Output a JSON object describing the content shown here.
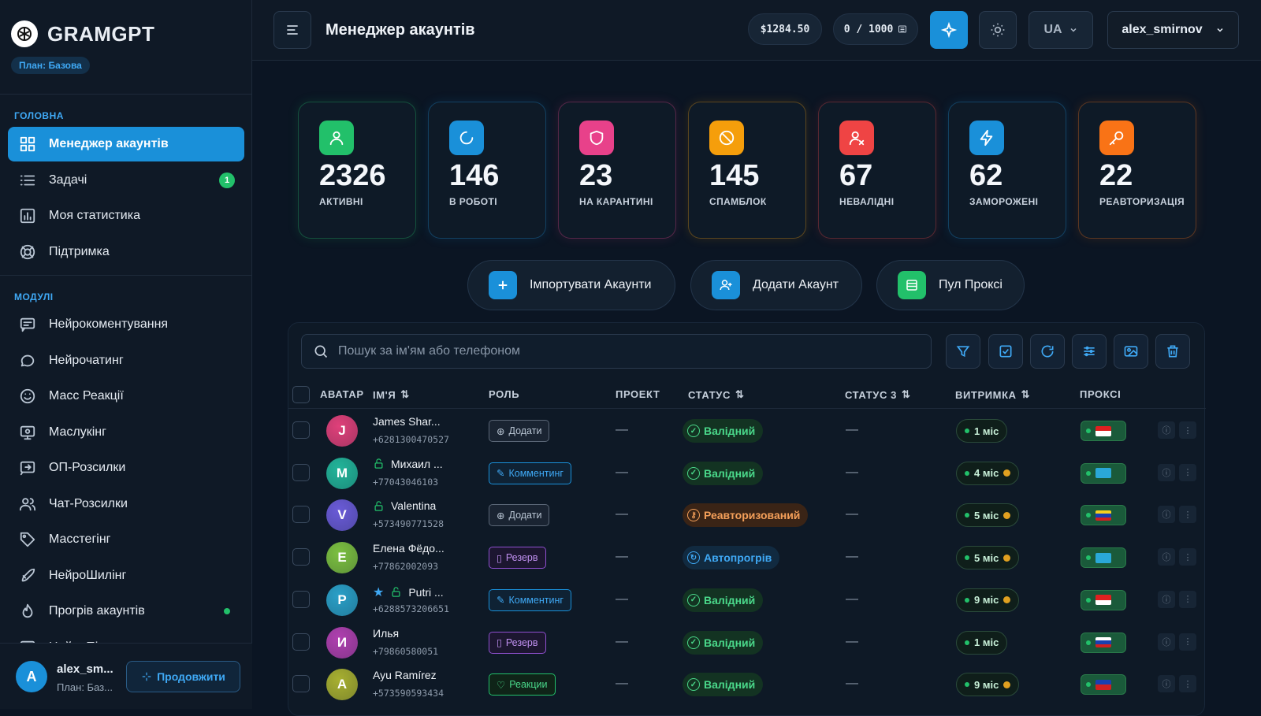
{
  "app": {
    "name": "GRAMGPT",
    "plan": "План: Базова"
  },
  "sidebar": {
    "section_main": "ГОЛОВНА",
    "section_modules": "МОДУЛІ",
    "main_items": [
      {
        "label": "Менеджер акаунтів",
        "icon": "grid-icon",
        "active": true
      },
      {
        "label": "Задачі",
        "icon": "list-icon",
        "badge": "1"
      },
      {
        "label": "Моя статистика",
        "icon": "chart-icon"
      },
      {
        "label": "Підтримка",
        "icon": "lifebuoy-icon"
      }
    ],
    "module_items": [
      {
        "label": "Нейрокоментування",
        "icon": "comments-icon"
      },
      {
        "label": "Нейрочатинг",
        "icon": "chat-bubble-icon"
      },
      {
        "label": "Масс Реакції",
        "icon": "smile-icon"
      },
      {
        "label": "Маслукінг",
        "icon": "monitor-eye-icon"
      },
      {
        "label": "ОП-Розсилки",
        "icon": "send-icon"
      },
      {
        "label": "Чат-Розсилки",
        "icon": "users-icon"
      },
      {
        "label": "Масстегінг",
        "icon": "tag-icon"
      },
      {
        "label": "НейроШилінг",
        "icon": "rocket-icon"
      },
      {
        "label": "Прогрів акаунтів",
        "icon": "flame-icon",
        "dot": true
      },
      {
        "label": "НейроПідписи",
        "icon": "monitor-icon"
      }
    ],
    "user": {
      "initial": "A",
      "name": "alex_sm...",
      "plan": "План: Баз...",
      "continue_label": "Продовжити"
    }
  },
  "header": {
    "title": "Менеджер акаунтів",
    "balance": "$1284.50",
    "quota": "0 / 1000",
    "lang": "UA",
    "username": "alex_smirnov"
  },
  "stats": [
    {
      "value": "2326",
      "label": "АКТИВНІ",
      "color": "#22c06a",
      "icon": "user-icon"
    },
    {
      "value": "146",
      "label": "В РОБОТІ",
      "color": "#1a90d9",
      "icon": "loader-icon"
    },
    {
      "value": "23",
      "label": "НА КАРАНТИНІ",
      "color": "#e8418a",
      "icon": "shield-icon"
    },
    {
      "value": "145",
      "label": "СПАМБЛОК",
      "color": "#f59e0b",
      "icon": "ban-icon"
    },
    {
      "value": "67",
      "label": "НЕВАЛІДНІ",
      "color": "#ef4444",
      "icon": "user-x-icon"
    },
    {
      "value": "62",
      "label": "ЗАМОРОЖЕНІ",
      "color": "#1a90d9",
      "icon": "bolt-icon"
    },
    {
      "value": "22",
      "label": "РЕАВТОРИЗАЦІЯ",
      "color": "#f97316",
      "icon": "key-icon"
    }
  ],
  "actions": {
    "import": "Імпортувати Акаунти",
    "add": "Додати Акаунт",
    "proxy": "Пул Проксі"
  },
  "search": {
    "placeholder": "Пошук за ім'ям або телефоном"
  },
  "table": {
    "columns": {
      "avatar": "АВАТАР",
      "name": "ІМ'Я",
      "role": "РОЛЬ",
      "project": "ПРОЕКТ",
      "status": "СТАТУС",
      "status3": "СТАТУС 3",
      "exposure": "ВИТРИМКА",
      "proxy": "ПРОКСІ"
    },
    "rows": [
      {
        "initial": "J",
        "avatar_color": "#e0407a",
        "name": "James Shar...",
        "phone": "+6281300470527",
        "lock": false,
        "star": false,
        "role": "Додати",
        "role_type": "add",
        "project": "—",
        "status": "Валідний",
        "status_type": "valid",
        "status3": "—",
        "exposure": "1 міс",
        "warn": false,
        "flag": "id"
      },
      {
        "initial": "M",
        "avatar_color": "#22b59a",
        "name": "Михаил ...",
        "phone": "+77043046103",
        "lock": true,
        "star": false,
        "role": "Комментинг",
        "role_type": "comment",
        "project": "—",
        "status": "Валідний",
        "status_type": "valid",
        "status3": "—",
        "exposure": "4 міс",
        "warn": true,
        "flag": "kz"
      },
      {
        "initial": "V",
        "avatar_color": "#6a5bd8",
        "name": "Valentina",
        "phone": "+573490771528",
        "lock": true,
        "star": false,
        "role": "Додати",
        "role_type": "add",
        "project": "—",
        "status": "Реавторизований",
        "status_type": "reauth",
        "status3": "—",
        "exposure": "5 міс",
        "warn": true,
        "flag": "co"
      },
      {
        "initial": "E",
        "avatar_color": "#7cc040",
        "name": "Елена Фёдо...",
        "phone": "+77862002093",
        "lock": false,
        "star": false,
        "role": "Резерв",
        "role_type": "reserve",
        "project": "—",
        "status": "Автопрогрів",
        "status_type": "auto",
        "status3": "—",
        "exposure": "5 міс",
        "warn": true,
        "flag": "kz"
      },
      {
        "initial": "P",
        "avatar_color": "#2aa0c8",
        "name": "Putri ...",
        "phone": "+6288573206651",
        "lock": true,
        "star": true,
        "role": "Комментинг",
        "role_type": "comment",
        "project": "—",
        "status": "Валідний",
        "status_type": "valid",
        "status3": "—",
        "exposure": "9 міс",
        "warn": true,
        "flag": "id"
      },
      {
        "initial": "И",
        "avatar_color": "#b040b0",
        "name": "Илья",
        "phone": "+79860580051",
        "lock": false,
        "star": false,
        "role": "Резерв",
        "role_type": "reserve",
        "project": "—",
        "status": "Валідний",
        "status_type": "valid",
        "status3": "—",
        "exposure": "1 міс",
        "warn": false,
        "flag": "ru"
      },
      {
        "initial": "A",
        "avatar_color": "#a8b030",
        "name": "Ayu Ramírez",
        "phone": "+573590593434",
        "lock": false,
        "star": false,
        "role": "Реакции",
        "role_type": "reactions",
        "project": "—",
        "status": "Валідний",
        "status_type": "valid",
        "status3": "—",
        "exposure": "9 міс",
        "warn": true,
        "flag": "ph"
      }
    ]
  }
}
